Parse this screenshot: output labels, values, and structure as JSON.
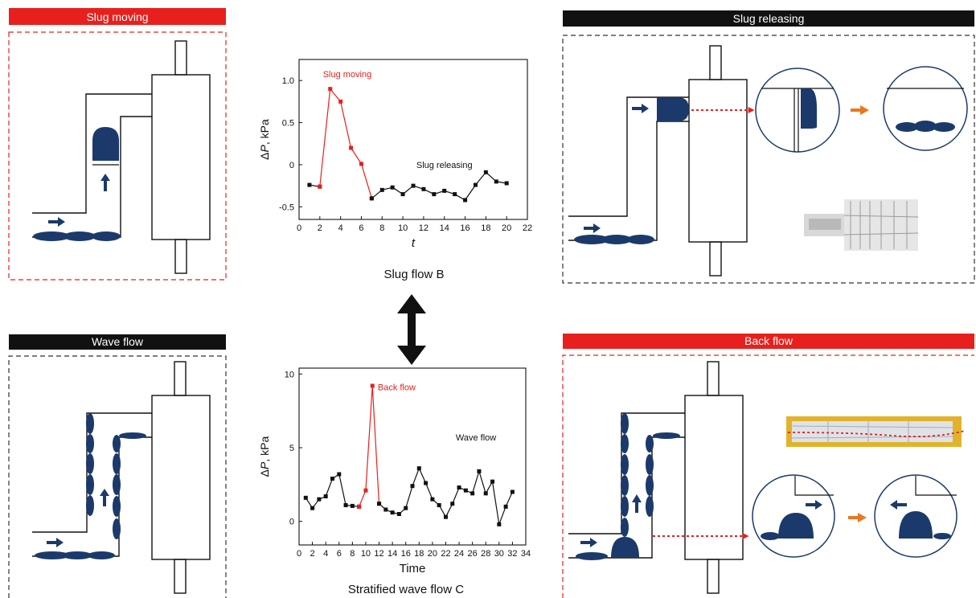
{
  "colors": {
    "red": "#e8201d",
    "black": "#111111",
    "navy": "#1b3a6b",
    "orange": "#e8781e",
    "dash_red": "#e8201d",
    "dash_black": "#333333"
  },
  "panels": {
    "slug_moving": "Slug moving",
    "slug_releasing": "Slug releasing",
    "wave_flow": "Wave flow",
    "back_flow": "Back flow"
  },
  "captions": {
    "top": "Slug flow B",
    "bottom": "Stratified wave flow C"
  },
  "icons": {
    "between_charts": "double-headed-arrow-icon",
    "process_arrow": "orange-arrow-icon",
    "flow_arrow": "navy-arrow-icon"
  },
  "chart_data": [
    {
      "type": "line",
      "xlabel": "t",
      "ylabel_prefix": "Δ",
      "ylabel_var": "P",
      "ylabel_unit": ", kPa",
      "xlim": [
        0,
        22
      ],
      "ylim": [
        -0.65,
        1.25
      ],
      "xticks": [
        0,
        2,
        4,
        6,
        8,
        10,
        12,
        14,
        16,
        18,
        20,
        22
      ],
      "yticks": [
        -0.5,
        0,
        0.5,
        1.0
      ],
      "ytick_labels": [
        "-0.5",
        "0",
        "0.5",
        "1.0"
      ],
      "annotations": [
        {
          "text": "Slug moving",
          "x": 2.3,
          "y": 1.04,
          "color": "#e8201d"
        },
        {
          "text": "Slug releasing",
          "x": 11.3,
          "y": -0.04,
          "color": "#111111"
        }
      ],
      "series": [
        {
          "x": [
            1,
            2
          ],
          "y": [
            -0.24,
            -0.26
          ],
          "color": "#111111"
        },
        {
          "x": [
            2,
            3,
            4,
            5,
            6,
            7
          ],
          "y": [
            -0.26,
            0.9,
            0.75,
            0.2,
            0.01,
            -0.4
          ],
          "color": "#e8201d"
        },
        {
          "x": [
            7,
            8,
            9,
            10,
            11,
            12,
            13,
            14,
            15,
            16,
            17,
            18,
            19,
            20
          ],
          "y": [
            -0.4,
            -0.3,
            -0.27,
            -0.35,
            -0.25,
            -0.29,
            -0.35,
            -0.31,
            -0.35,
            -0.42,
            -0.24,
            -0.09,
            -0.2,
            -0.22
          ],
          "color": "#111111"
        }
      ]
    },
    {
      "type": "line",
      "xlabel": "Time",
      "ylabel_prefix": "Δ",
      "ylabel_var": "P",
      "ylabel_unit": ", kPa",
      "xlim": [
        0,
        34
      ],
      "ylim": [
        -1.6,
        10.4
      ],
      "xticks": [
        0,
        2,
        4,
        6,
        8,
        10,
        12,
        14,
        16,
        18,
        20,
        22,
        24,
        26,
        28,
        30,
        32,
        34
      ],
      "yticks": [
        0,
        5,
        10
      ],
      "ytick_labels": [
        "0",
        "5",
        "10"
      ],
      "annotations": [
        {
          "text": "Back flow",
          "x": 11.8,
          "y": 8.9,
          "color": "#e8201d"
        },
        {
          "text": "Wave flow",
          "x": 23.5,
          "y": 5.5,
          "color": "#111111"
        }
      ],
      "series": [
        {
          "x": [
            1,
            2,
            3,
            4,
            5,
            6,
            7,
            8,
            9
          ],
          "y": [
            1.6,
            0.9,
            1.5,
            1.7,
            2.9,
            3.2,
            1.1,
            1.05,
            1.0
          ],
          "color": "#111111"
        },
        {
          "x": [
            9,
            10,
            11,
            12
          ],
          "y": [
            1.0,
            2.1,
            9.2,
            1.2
          ],
          "color": "#e8201d"
        },
        {
          "x": [
            12,
            13,
            14,
            15,
            16,
            17,
            18,
            19,
            20,
            21,
            22,
            23,
            24,
            25,
            26,
            27,
            28,
            29,
            30,
            31,
            32
          ],
          "y": [
            1.2,
            0.8,
            0.6,
            0.5,
            0.9,
            2.4,
            3.6,
            2.6,
            1.5,
            1.1,
            0.3,
            1.2,
            2.3,
            2.1,
            1.9,
            3.4,
            1.9,
            2.7,
            -0.2,
            1.0,
            2.0
          ],
          "color": "#111111"
        }
      ]
    }
  ]
}
